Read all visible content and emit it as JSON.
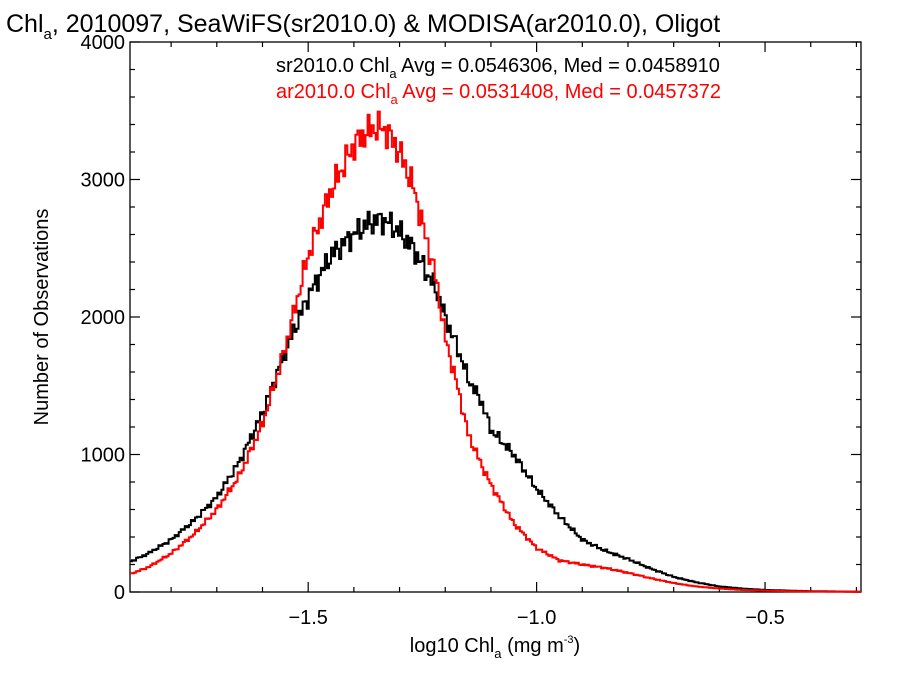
{
  "chart_data": {
    "type": "line",
    "title": {
      "prefix": "Chl",
      "sub": "a",
      "rest": ", 2010097, SeaWiFS(sr2010.0) & MODISA(ar2010.0), Oligot"
    },
    "xlabel": {
      "prefix": "log10 Chl",
      "sub": "a",
      "mid": " (mg m",
      "sup": "-3",
      "suffix": ")"
    },
    "ylabel": "Number of Observations",
    "xlim": [
      -1.89,
      -0.29
    ],
    "ylim": [
      0,
      4000
    ],
    "x_ticks": [
      -1.5,
      -1.0,
      -0.5
    ],
    "x_tick_labels": [
      "−1.5",
      "−1.0",
      "−0.5"
    ],
    "y_ticks": [
      0,
      1000,
      2000,
      3000,
      4000
    ],
    "y_tick_labels": [
      "0",
      "1000",
      "2000",
      "3000",
      "4000"
    ],
    "grid": false,
    "series": [
      {
        "name": "sr2010.0",
        "color": "#000000",
        "legend": {
          "pre": "sr2010.0 Chl",
          "sub": "a",
          "post": " Avg = 0.0546306, Med = 0.0458910"
        },
        "x": [
          -1.89,
          -1.85,
          -1.8,
          -1.75,
          -1.7,
          -1.65,
          -1.6,
          -1.55,
          -1.5,
          -1.45,
          -1.4,
          -1.37,
          -1.35,
          -1.33,
          -1.3,
          -1.27,
          -1.25,
          -1.22,
          -1.2,
          -1.17,
          -1.15,
          -1.12,
          -1.1,
          -1.05,
          -1.0,
          -0.95,
          -0.9,
          -0.85,
          -0.8,
          -0.75,
          -0.7,
          -0.65,
          -0.6,
          -0.55,
          -0.5,
          -0.45,
          -0.4,
          -0.35,
          -0.29
        ],
        "y": [
          220,
          280,
          380,
          520,
          690,
          950,
          1300,
          1750,
          2150,
          2450,
          2600,
          2680,
          2700,
          2700,
          2620,
          2500,
          2380,
          2200,
          2000,
          1750,
          1550,
          1380,
          1180,
          1000,
          750,
          550,
          380,
          300,
          240,
          170,
          110,
          70,
          40,
          25,
          15,
          10,
          6,
          4,
          2
        ]
      },
      {
        "name": "ar2010.0",
        "color": "#ff0000",
        "legend": {
          "pre": "ar2010.0 Chl",
          "sub": "a",
          "post": " Avg = 0.0531408, Med = 0.0457372"
        },
        "x": [
          -1.89,
          -1.85,
          -1.8,
          -1.75,
          -1.7,
          -1.65,
          -1.6,
          -1.55,
          -1.5,
          -1.45,
          -1.4,
          -1.37,
          -1.35,
          -1.33,
          -1.3,
          -1.27,
          -1.25,
          -1.22,
          -1.2,
          -1.17,
          -1.15,
          -1.12,
          -1.1,
          -1.05,
          -1.0,
          -0.95,
          -0.9,
          -0.85,
          -0.8,
          -0.75,
          -0.7,
          -0.65,
          -0.6,
          -0.55,
          -0.5,
          -0.45,
          -0.4,
          -0.35,
          -0.29
        ],
        "y": [
          130,
          180,
          280,
          420,
          600,
          850,
          1220,
          1780,
          2450,
          2920,
          3250,
          3350,
          3380,
          3360,
          3200,
          2950,
          2680,
          2280,
          1850,
          1450,
          1150,
          920,
          780,
          500,
          320,
          230,
          200,
          175,
          140,
          100,
          65,
          40,
          25,
          15,
          10,
          6,
          4,
          3,
          2
        ]
      }
    ]
  }
}
